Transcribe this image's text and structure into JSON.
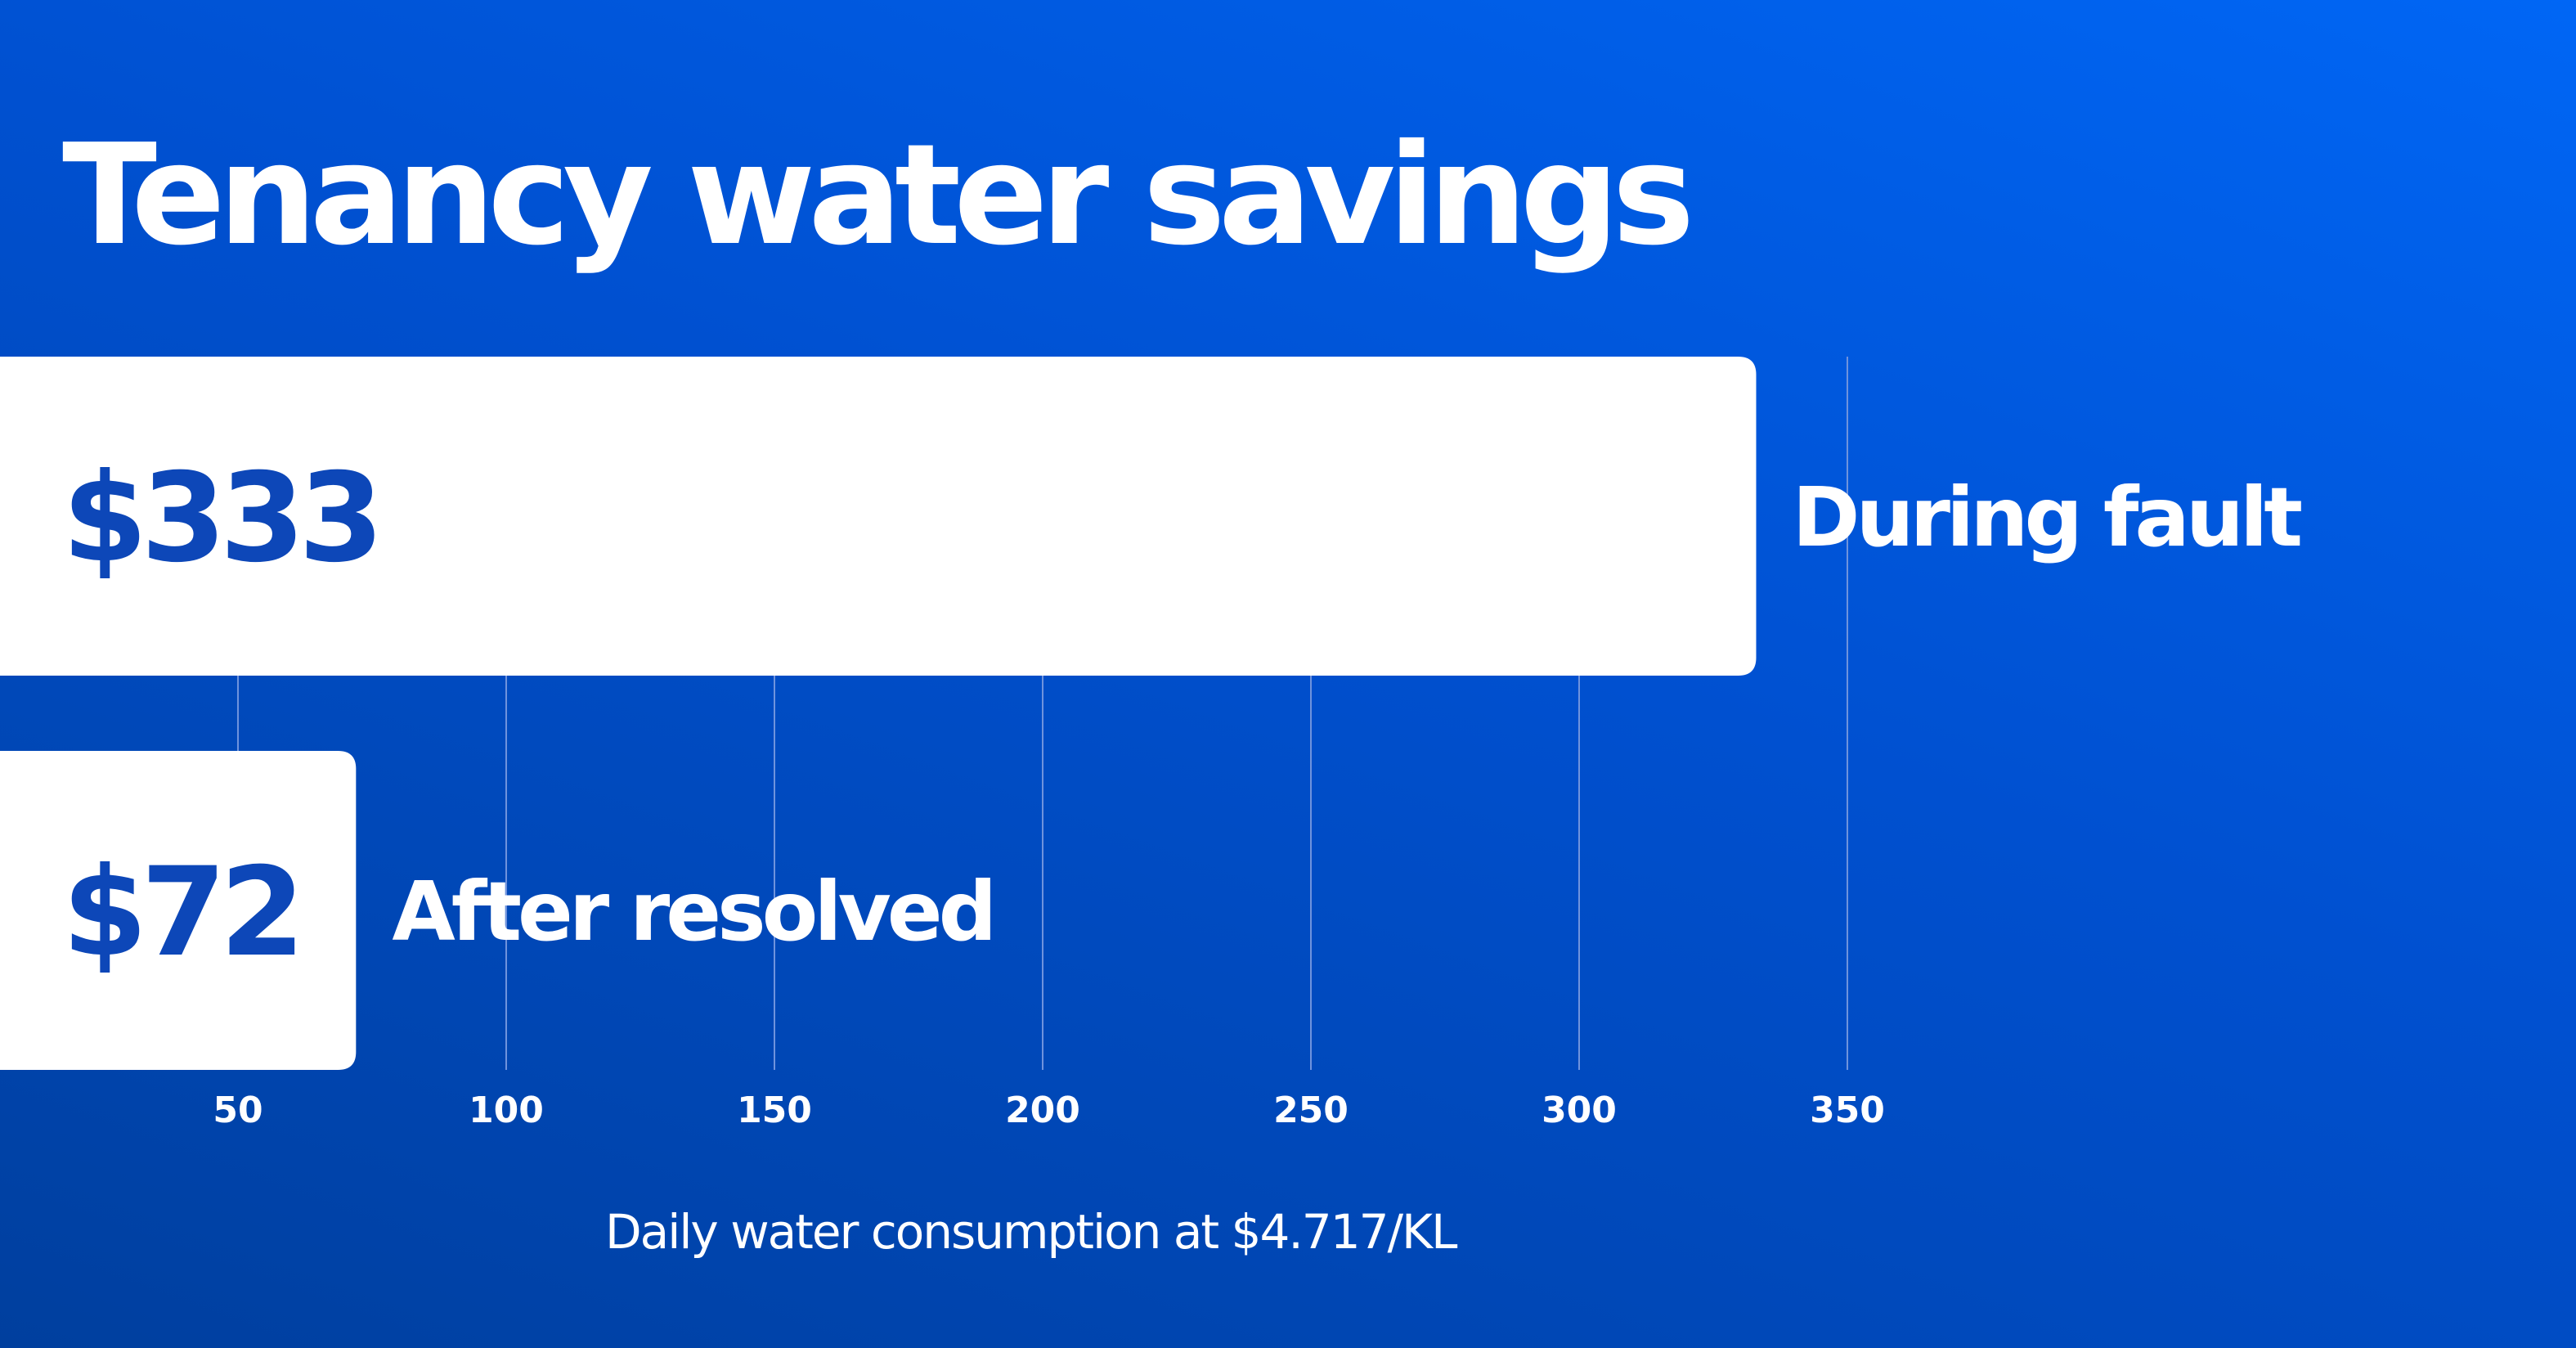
{
  "chart_data": {
    "type": "bar",
    "orientation": "horizontal",
    "title": "Tenancy water savings",
    "xlabel": "Daily water consumption at $4.717/KL",
    "ylabel": "",
    "xticks": [
      50,
      100,
      150,
      200,
      250,
      300,
      350
    ],
    "grid": true,
    "bars": [
      {
        "category": "During fault",
        "value": 333,
        "value_label": "$333"
      },
      {
        "category": "After resolved",
        "value": 72,
        "value_label": "$72"
      }
    ]
  },
  "colors": {
    "bar": "#ffffff",
    "value_text": "#0d47b8",
    "label_text": "#ffffff",
    "grid": "#6f93dd"
  }
}
